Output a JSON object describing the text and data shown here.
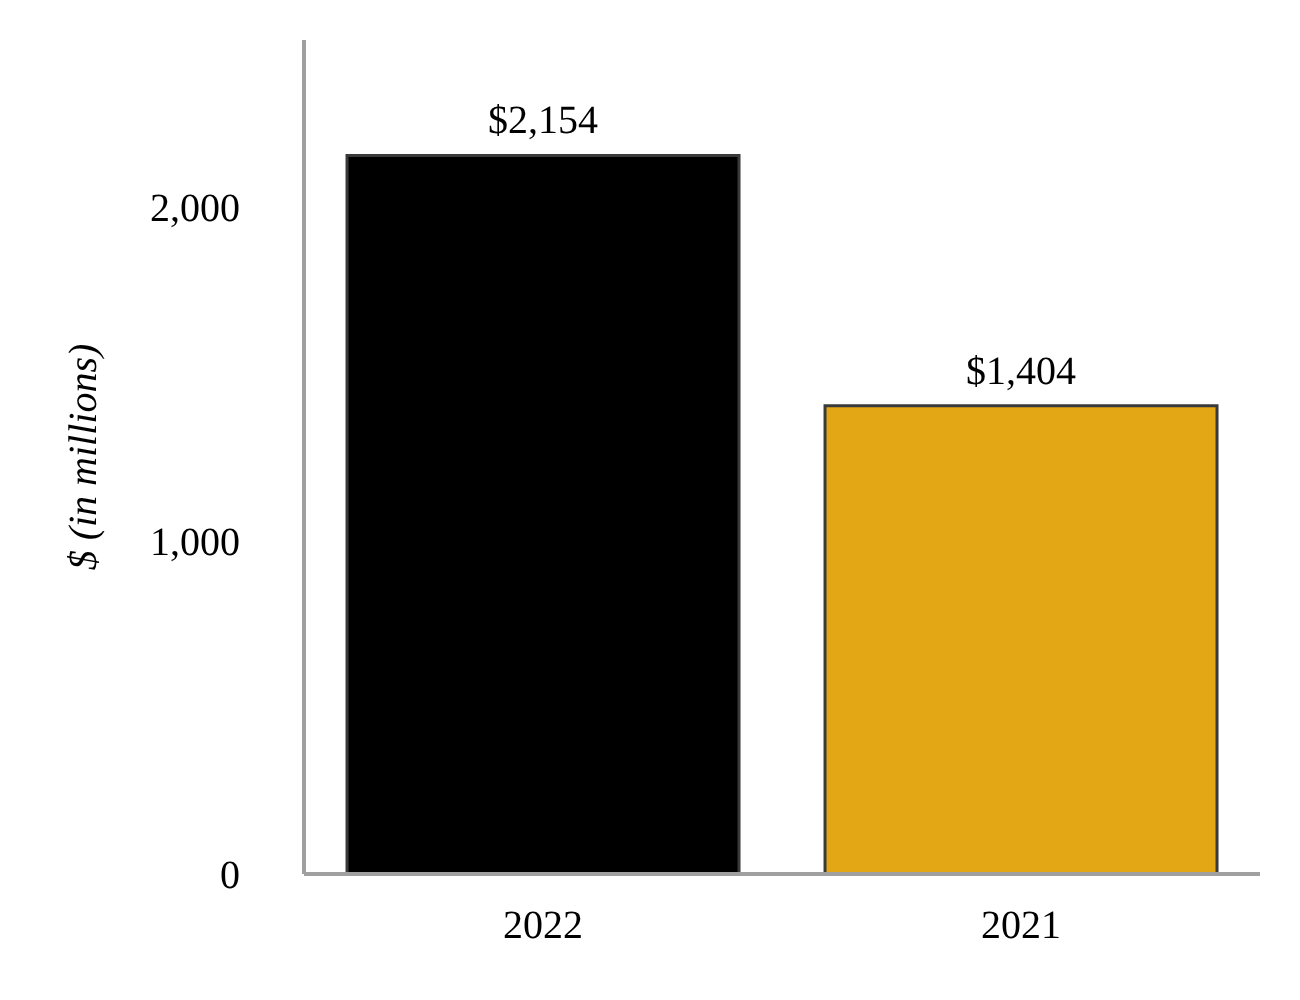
{
  "chart_data": {
    "type": "bar",
    "categories": [
      "2022",
      "2021"
    ],
    "values": [
      2154,
      1404
    ],
    "colors": [
      "#000000",
      "#e3a614"
    ],
    "value_labels": [
      "$2,154",
      "$1,404"
    ],
    "ylabel": "$ (in millions)",
    "ylim": [
      0,
      2500
    ],
    "yticks": [
      0,
      {
        "value": 1000,
        "label": "1,000"
      },
      {
        "value": 2000,
        "label": "2,000"
      }
    ]
  }
}
